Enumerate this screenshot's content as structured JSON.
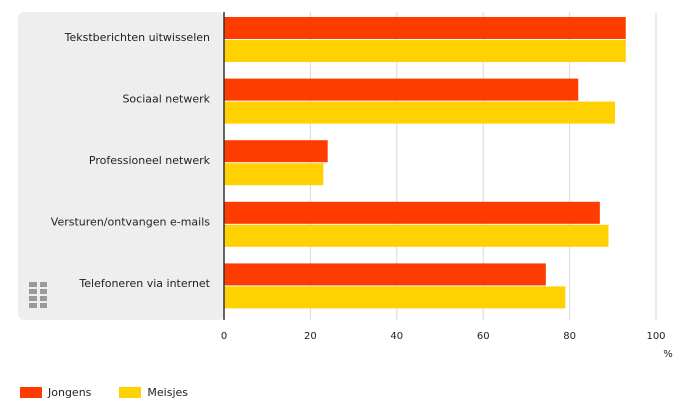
{
  "colors": {
    "jongens": "#ff3c00",
    "meisjes": "#ffd100",
    "panel": "#eeeeee",
    "grid": "#d9d9d9",
    "axis": "#333333"
  },
  "chart_data": {
    "type": "bar",
    "orientation": "horizontal",
    "categories": [
      "Tekstberichten uitwisselen",
      "Sociaal netwerk",
      "Professioneel netwerk",
      "Versturen/ontvangen e-mails",
      "Telefoneren via internet"
    ],
    "series": [
      {
        "name": "Jongens",
        "values": [
          93,
          82,
          24,
          87,
          74.5
        ]
      },
      {
        "name": "Meisjes",
        "values": [
          93,
          90.5,
          23,
          89,
          79
        ]
      }
    ],
    "xlim": [
      0,
      100
    ],
    "ticks": [
      0,
      20,
      40,
      60,
      80,
      100
    ],
    "unit": "%",
    "grid": true,
    "legend": "bottom-left"
  },
  "logo": {
    "text": "cbs",
    "icon": "cbs-logo-icon"
  }
}
